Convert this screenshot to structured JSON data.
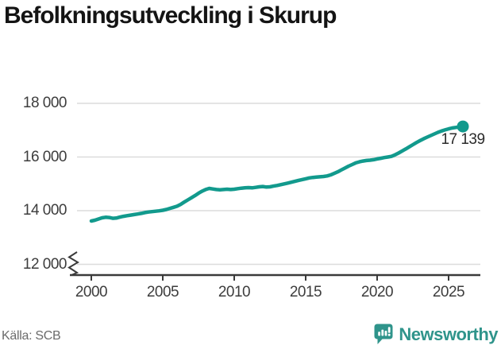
{
  "title": "Befolkningsutveckling i Skurup",
  "source": "Källa: SCB",
  "logo": {
    "text": "Newsworthy",
    "icon": "newsworthy-chart-bubble-icon",
    "color": "#2f948b"
  },
  "chart_data": {
    "type": "line",
    "title": "Befolkningsutveckling i Skurup",
    "xlabel": "",
    "ylabel": "",
    "grid": "horizontal",
    "legend": "none",
    "axis_break": true,
    "line_color": "#129a8d",
    "dot_color": "#129a8d",
    "grid_color": "#dcdcdc",
    "axis_color": "#3a3a3a",
    "xlim": [
      2000,
      2026
    ],
    "ylim": [
      11600,
      18600
    ],
    "end_label": "17 139",
    "end_value": 17139,
    "end_year": 2026,
    "xticks": [
      {
        "value": 2000,
        "label": "2000"
      },
      {
        "value": 2005,
        "label": "2005"
      },
      {
        "value": 2010,
        "label": "2010"
      },
      {
        "value": 2015,
        "label": "2015"
      },
      {
        "value": 2020,
        "label": "2020"
      },
      {
        "value": 2025,
        "label": "2025"
      }
    ],
    "yticks": [
      {
        "value": 12000,
        "label": "12 000"
      },
      {
        "value": 14000,
        "label": "14 000"
      },
      {
        "value": 16000,
        "label": "16 000"
      },
      {
        "value": 18000,
        "label": "18 000"
      }
    ],
    "series": [
      {
        "name": "Befolkning",
        "points": [
          [
            2000.0,
            13615
          ],
          [
            2000.25,
            13645
          ],
          [
            2000.5,
            13690
          ],
          [
            2000.75,
            13735
          ],
          [
            2001.0,
            13755
          ],
          [
            2001.25,
            13745
          ],
          [
            2001.5,
            13715
          ],
          [
            2001.75,
            13725
          ],
          [
            2002.0,
            13760
          ],
          [
            2002.25,
            13790
          ],
          [
            2002.5,
            13815
          ],
          [
            2002.75,
            13835
          ],
          [
            2003.0,
            13855
          ],
          [
            2003.25,
            13875
          ],
          [
            2003.5,
            13900
          ],
          [
            2003.75,
            13930
          ],
          [
            2004.0,
            13950
          ],
          [
            2004.25,
            13965
          ],
          [
            2004.5,
            13980
          ],
          [
            2004.75,
            13995
          ],
          [
            2005.0,
            14015
          ],
          [
            2005.25,
            14045
          ],
          [
            2005.5,
            14085
          ],
          [
            2005.75,
            14125
          ],
          [
            2006.0,
            14165
          ],
          [
            2006.25,
            14235
          ],
          [
            2006.5,
            14320
          ],
          [
            2006.75,
            14400
          ],
          [
            2007.0,
            14480
          ],
          [
            2007.25,
            14560
          ],
          [
            2007.5,
            14650
          ],
          [
            2007.75,
            14725
          ],
          [
            2008.0,
            14790
          ],
          [
            2008.25,
            14830
          ],
          [
            2008.5,
            14810
          ],
          [
            2008.75,
            14790
          ],
          [
            2009.0,
            14780
          ],
          [
            2009.25,
            14790
          ],
          [
            2009.5,
            14800
          ],
          [
            2009.75,
            14790
          ],
          [
            2010.0,
            14800
          ],
          [
            2010.25,
            14820
          ],
          [
            2010.5,
            14840
          ],
          [
            2010.75,
            14850
          ],
          [
            2011.0,
            14860
          ],
          [
            2011.25,
            14850
          ],
          [
            2011.5,
            14870
          ],
          [
            2011.75,
            14890
          ],
          [
            2012.0,
            14900
          ],
          [
            2012.25,
            14880
          ],
          [
            2012.5,
            14890
          ],
          [
            2012.75,
            14915
          ],
          [
            2013.0,
            14940
          ],
          [
            2013.25,
            14970
          ],
          [
            2013.5,
            15000
          ],
          [
            2013.75,
            15030
          ],
          [
            2014.0,
            15060
          ],
          [
            2014.25,
            15095
          ],
          [
            2014.5,
            15130
          ],
          [
            2014.75,
            15160
          ],
          [
            2015.0,
            15190
          ],
          [
            2015.25,
            15220
          ],
          [
            2015.5,
            15240
          ],
          [
            2015.75,
            15252
          ],
          [
            2016.0,
            15262
          ],
          [
            2016.25,
            15275
          ],
          [
            2016.5,
            15295
          ],
          [
            2016.75,
            15335
          ],
          [
            2017.0,
            15390
          ],
          [
            2017.25,
            15450
          ],
          [
            2017.5,
            15520
          ],
          [
            2017.75,
            15590
          ],
          [
            2018.0,
            15660
          ],
          [
            2018.25,
            15720
          ],
          [
            2018.5,
            15780
          ],
          [
            2018.75,
            15820
          ],
          [
            2019.0,
            15850
          ],
          [
            2019.25,
            15870
          ],
          [
            2019.5,
            15882
          ],
          [
            2019.75,
            15900
          ],
          [
            2020.0,
            15930
          ],
          [
            2020.25,
            15952
          ],
          [
            2020.5,
            15980
          ],
          [
            2020.75,
            16002
          ],
          [
            2021.0,
            16025
          ],
          [
            2021.25,
            16080
          ],
          [
            2021.5,
            16150
          ],
          [
            2021.75,
            16225
          ],
          [
            2022.0,
            16300
          ],
          [
            2022.25,
            16380
          ],
          [
            2022.5,
            16460
          ],
          [
            2022.75,
            16540
          ],
          [
            2023.0,
            16612
          ],
          [
            2023.25,
            16680
          ],
          [
            2023.5,
            16742
          ],
          [
            2023.75,
            16802
          ],
          [
            2024.0,
            16860
          ],
          [
            2024.25,
            16920
          ],
          [
            2024.5,
            16970
          ],
          [
            2024.75,
            17012
          ],
          [
            2025.0,
            17050
          ],
          [
            2025.25,
            17082
          ],
          [
            2025.5,
            17103
          ],
          [
            2025.75,
            17122
          ],
          [
            2026.0,
            17139
          ]
        ]
      }
    ]
  }
}
